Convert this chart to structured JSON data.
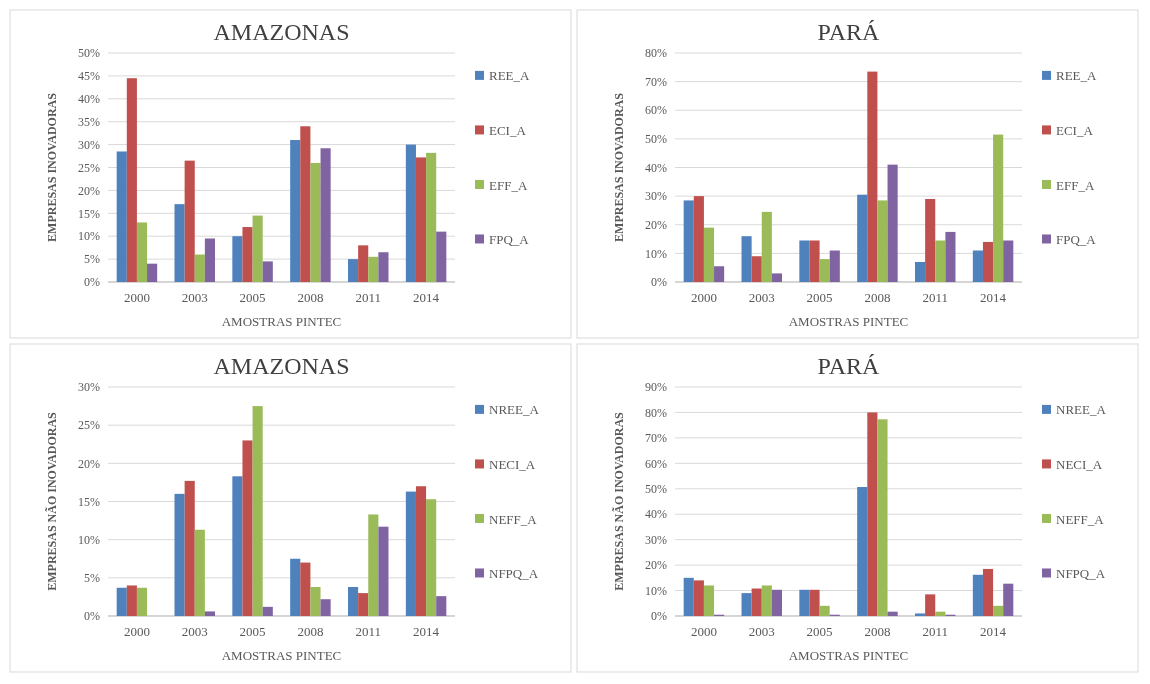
{
  "chart_data": [
    {
      "type": "bar",
      "title": "AMAZONAS",
      "xlabel": "AMOSTRAS PINTEC",
      "ylabel": "EMPRESAS  INOVADORAS",
      "categories": [
        "2000",
        "2003",
        "2005",
        "2008",
        "2011",
        "2014"
      ],
      "ylim": [
        0,
        50
      ],
      "yticks": [
        {
          "value": 0,
          "label": "0%"
        },
        {
          "value": 5,
          "label": "5%"
        },
        {
          "value": 10,
          "label": "10%"
        },
        {
          "value": 15,
          "label": "15%"
        },
        {
          "value": 20,
          "label": "20%"
        },
        {
          "value": 25,
          "label": "25%"
        },
        {
          "value": 30,
          "label": "30%"
        },
        {
          "value": 35,
          "label": "35%"
        },
        {
          "value": 40,
          "label": "40%"
        },
        {
          "value": 45,
          "label": "45%"
        },
        {
          "value": 50,
          "label": "50%"
        }
      ],
      "grid": "y",
      "legend": "right",
      "series": [
        {
          "name": "REE_A",
          "color": "#4f81bd",
          "values": [
            28.5,
            17,
            10,
            31,
            5,
            30
          ]
        },
        {
          "name": "ECI_A",
          "color": "#c0504d",
          "values": [
            44.5,
            26.5,
            12,
            34,
            8,
            27.2
          ]
        },
        {
          "name": "EFF_A",
          "color": "#9bbb59",
          "values": [
            13,
            6,
            14.5,
            26,
            5.5,
            28.2
          ]
        },
        {
          "name": "FPQ_A",
          "color": "#8064a2",
          "values": [
            4,
            9.5,
            4.5,
            29.2,
            6.5,
            11
          ]
        }
      ]
    },
    {
      "type": "bar",
      "title": "PARÁ",
      "xlabel": "AMOSTRAS PINTEC",
      "ylabel": "EMPRESAS  INOVADORAS",
      "categories": [
        "2000",
        "2003",
        "2005",
        "2008",
        "2011",
        "2014"
      ],
      "ylim": [
        0,
        80
      ],
      "yticks": [
        {
          "value": 0,
          "label": "0%"
        },
        {
          "value": 10,
          "label": "10%"
        },
        {
          "value": 20,
          "label": "20%"
        },
        {
          "value": 30,
          "label": "30%"
        },
        {
          "value": 40,
          "label": "40%"
        },
        {
          "value": 50,
          "label": "50%"
        },
        {
          "value": 60,
          "label": "60%"
        },
        {
          "value": 70,
          "label": "70%"
        },
        {
          "value": 80,
          "label": "80%"
        }
      ],
      "grid": "y",
      "legend": "right",
      "series": [
        {
          "name": "REE_A",
          "color": "#4f81bd",
          "values": [
            28.5,
            16,
            14.5,
            30.5,
            7,
            11
          ]
        },
        {
          "name": "ECI_A",
          "color": "#c0504d",
          "values": [
            30,
            9,
            14.5,
            73.5,
            29,
            14
          ]
        },
        {
          "name": "EFF_A",
          "color": "#9bbb59",
          "values": [
            19,
            24.5,
            8,
            28.5,
            14.5,
            51.5
          ]
        },
        {
          "name": "FPQ_A",
          "color": "#8064a2",
          "values": [
            5.5,
            3,
            11,
            41,
            17.5,
            14.5
          ]
        }
      ]
    },
    {
      "type": "bar",
      "title": "AMAZONAS",
      "xlabel": "AMOSTRAS PINTEC",
      "ylabel": "EMPRESAS NÃO INOVADORAS",
      "categories": [
        "2000",
        "2003",
        "2005",
        "2008",
        "2011",
        "2014"
      ],
      "ylim": [
        0,
        30
      ],
      "yticks": [
        {
          "value": 0,
          "label": "0%"
        },
        {
          "value": 5,
          "label": "5%"
        },
        {
          "value": 10,
          "label": "10%"
        },
        {
          "value": 15,
          "label": "15%"
        },
        {
          "value": 20,
          "label": "20%"
        },
        {
          "value": 25,
          "label": "25%"
        },
        {
          "value": 30,
          "label": "30%"
        }
      ],
      "grid": "y",
      "legend": "right",
      "series": [
        {
          "name": "NREE_A",
          "color": "#4f81bd",
          "values": [
            3.7,
            16,
            18.3,
            7.5,
            3.8,
            16.3
          ]
        },
        {
          "name": "NECI_A",
          "color": "#c0504d",
          "values": [
            4,
            17.7,
            23,
            7,
            3,
            17
          ]
        },
        {
          "name": "NEFF_A",
          "color": "#9bbb59",
          "values": [
            3.7,
            11.3,
            27.5,
            3.8,
            13.3,
            15.3
          ]
        },
        {
          "name": "NFPQ_A",
          "color": "#8064a2",
          "values": [
            null,
            0.6,
            1.2,
            2.2,
            11.7,
            2.6
          ]
        }
      ]
    },
    {
      "type": "bar",
      "title": "PARÁ",
      "xlabel": "AMOSTRAS PINTEC",
      "ylabel": "EMPRESAS NÃO INOVADORAS",
      "categories": [
        "2000",
        "2003",
        "2005",
        "2008",
        "2011",
        "2014"
      ],
      "ylim": [
        0,
        90
      ],
      "yticks": [
        {
          "value": 0,
          "label": "0%"
        },
        {
          "value": 10,
          "label": "10%"
        },
        {
          "value": 20,
          "label": "20%"
        },
        {
          "value": 30,
          "label": "30%"
        },
        {
          "value": 40,
          "label": "40%"
        },
        {
          "value": 50,
          "label": "50%"
        },
        {
          "value": 60,
          "label": "60%"
        },
        {
          "value": 70,
          "label": "70%"
        },
        {
          "value": 80,
          "label": "80%"
        },
        {
          "value": 90,
          "label": "90%"
        }
      ],
      "grid": "y",
      "legend": "right",
      "series": [
        {
          "name": "NREE_A",
          "color": "#4f81bd",
          "values": [
            15,
            9,
            10.3,
            50.7,
            1,
            16.2
          ]
        },
        {
          "name": "NECI_A",
          "color": "#c0504d",
          "values": [
            14,
            10.8,
            10.3,
            80,
            8.5,
            18.5
          ]
        },
        {
          "name": "NEFF_A",
          "color": "#9bbb59",
          "values": [
            12,
            12,
            4,
            77.3,
            1.7,
            4
          ]
        },
        {
          "name": "NFPQ_A",
          "color": "#8064a2",
          "values": [
            0.5,
            10.3,
            0.5,
            1.7,
            0.5,
            12.7
          ]
        }
      ]
    }
  ]
}
